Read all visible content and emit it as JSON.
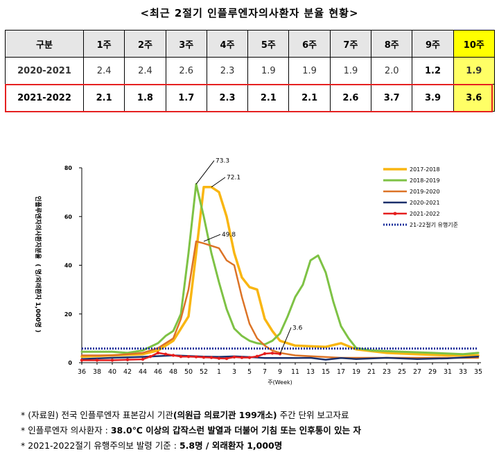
{
  "title": "<최근 2절기 인플루엔자의사환자 분율 현황>",
  "table": {
    "header": [
      "구분",
      "1주",
      "2주",
      "3주",
      "4주",
      "5주",
      "6주",
      "7주",
      "8주",
      "9주",
      "10주"
    ],
    "rows": [
      [
        "2020-2021",
        "2.4",
        "2.4",
        "2.6",
        "2.3",
        "1.9",
        "1.9",
        "1.9",
        "2.0",
        "1.2",
        "1.9"
      ],
      [
        "2021-2022",
        "2.1",
        "1.8",
        "1.7",
        "2.3",
        "2.1",
        "2.1",
        "2.6",
        "3.7",
        "3.9",
        "3.6"
      ]
    ]
  },
  "chart_data": {
    "type": "line",
    "ylabel_main": "인플루엔자의사환자분율",
    "ylabel_unit": "( 명/외래환자 1,000명 )",
    "xlabel": "주(Week)",
    "ylim": [
      0,
      80
    ],
    "yticks": [
      "0",
      "20",
      "40",
      "60",
      "80"
    ],
    "x_ticks": [
      "36",
      "38",
      "40",
      "42",
      "44",
      "46",
      "48",
      "50",
      "52",
      "1",
      "3",
      "5",
      "7",
      "9",
      "11",
      "13",
      "15",
      "17",
      "19",
      "21",
      "23",
      "25",
      "27",
      "29",
      "31",
      "33",
      "35"
    ],
    "week_index_range": [
      0,
      52
    ],
    "series": [
      {
        "name": "2017-2018",
        "color": "#f9b612",
        "width": 3.5,
        "values": [
          [
            0,
            2.5
          ],
          [
            4,
            3
          ],
          [
            8,
            3.5
          ],
          [
            10,
            5
          ],
          [
            12,
            9
          ],
          [
            14,
            19
          ],
          [
            15,
            45
          ],
          [
            16,
            72.1
          ],
          [
            17,
            72.1
          ],
          [
            18,
            70
          ],
          [
            19,
            60
          ],
          [
            20,
            45
          ],
          [
            21,
            35
          ],
          [
            22,
            31
          ],
          [
            23,
            30
          ],
          [
            24,
            18
          ],
          [
            25,
            13
          ],
          [
            26,
            9
          ],
          [
            28,
            7
          ],
          [
            32,
            6.5
          ],
          [
            34,
            8
          ],
          [
            36,
            5.5
          ],
          [
            40,
            4
          ],
          [
            44,
            3.5
          ],
          [
            48,
            3
          ],
          [
            52,
            3
          ]
        ]
      },
      {
        "name": "2018-2019",
        "color": "#7ec245",
        "width": 3,
        "values": [
          [
            0,
            4.5
          ],
          [
            4,
            4.5
          ],
          [
            6,
            4
          ],
          [
            8,
            5
          ],
          [
            10,
            8
          ],
          [
            11,
            11
          ],
          [
            12,
            13
          ],
          [
            13,
            20
          ],
          [
            14,
            45
          ],
          [
            15,
            73.3
          ],
          [
            16,
            60
          ],
          [
            17,
            45
          ],
          [
            18,
            33
          ],
          [
            19,
            22
          ],
          [
            20,
            14
          ],
          [
            21,
            11
          ],
          [
            22,
            9
          ],
          [
            23,
            8
          ],
          [
            24,
            7.5
          ],
          [
            25,
            9
          ],
          [
            26,
            12
          ],
          [
            27,
            19
          ],
          [
            28,
            27
          ],
          [
            29,
            32
          ],
          [
            30,
            42
          ],
          [
            31,
            44
          ],
          [
            32,
            37
          ],
          [
            33,
            25
          ],
          [
            34,
            15
          ],
          [
            35,
            10
          ],
          [
            36,
            6
          ],
          [
            38,
            5
          ],
          [
            42,
            4.5
          ],
          [
            46,
            4
          ],
          [
            50,
            3.5
          ],
          [
            52,
            4
          ]
        ]
      },
      {
        "name": "2019-2020",
        "color": "#dc7326",
        "width": 2.5,
        "values": [
          [
            0,
            3
          ],
          [
            4,
            3
          ],
          [
            8,
            4
          ],
          [
            10,
            6
          ],
          [
            12,
            10
          ],
          [
            13,
            18
          ],
          [
            14,
            30
          ],
          [
            15,
            49.8
          ],
          [
            16,
            49
          ],
          [
            17,
            48
          ],
          [
            18,
            47
          ],
          [
            19,
            42
          ],
          [
            20,
            40
          ],
          [
            21,
            27
          ],
          [
            22,
            16
          ],
          [
            23,
            10
          ],
          [
            24,
            7
          ],
          [
            25,
            5
          ],
          [
            26,
            4
          ],
          [
            28,
            3
          ],
          [
            34,
            2
          ],
          [
            40,
            2
          ],
          [
            46,
            2
          ],
          [
            52,
            2
          ]
        ]
      },
      {
        "name": "2020-2021",
        "color": "#1a2f6b",
        "width": 2.5,
        "values": [
          [
            0,
            1.5
          ],
          [
            4,
            2
          ],
          [
            8,
            2.4
          ],
          [
            12,
            3
          ],
          [
            16,
            2.5
          ],
          [
            18,
            2.4
          ],
          [
            20,
            2.6
          ],
          [
            22,
            2.3
          ],
          [
            24,
            1.9
          ],
          [
            26,
            1.9
          ],
          [
            28,
            1.9
          ],
          [
            30,
            2.0
          ],
          [
            32,
            1.2
          ],
          [
            34,
            1.9
          ],
          [
            36,
            1.5
          ],
          [
            40,
            2
          ],
          [
            44,
            1.5
          ],
          [
            48,
            1.8
          ],
          [
            52,
            2.5
          ]
        ]
      },
      {
        "name": "2021-2022",
        "color": "#e51e1e",
        "width": 2.5,
        "marker": true,
        "values": [
          [
            0,
            1
          ],
          [
            2,
            1
          ],
          [
            4,
            1
          ],
          [
            6,
            1.2
          ],
          [
            8,
            1.4
          ],
          [
            9,
            2.5
          ],
          [
            10,
            4
          ],
          [
            11,
            3.5
          ],
          [
            12,
            3
          ],
          [
            13,
            2.5
          ],
          [
            14,
            2.5
          ],
          [
            15,
            2.4
          ],
          [
            16,
            2.2
          ],
          [
            17,
            2.1
          ],
          [
            18,
            1.8
          ],
          [
            19,
            1.7
          ],
          [
            20,
            2.3
          ],
          [
            21,
            2.1
          ],
          [
            22,
            2.1
          ],
          [
            23,
            2.6
          ],
          [
            24,
            3.7
          ],
          [
            25,
            3.9
          ],
          [
            26,
            3.6
          ]
        ]
      },
      {
        "name": "21-22절기 유행기준",
        "color": "#1a2f9b",
        "width": 3,
        "dashed": true,
        "values": [
          [
            0,
            5.8
          ],
          [
            52,
            5.8
          ]
        ]
      }
    ],
    "annotations": [
      {
        "label": "73.3",
        "x": 15,
        "y": 73.3
      },
      {
        "label": "72.1",
        "x": 17,
        "y": 72.1
      },
      {
        "label": "49.8",
        "x": 16,
        "y": 49.8
      },
      {
        "label": "3.6",
        "x": 26,
        "y": 3.6
      }
    ]
  },
  "notes": [
    {
      "plain": "* (자료원) 전국 인플루엔자 표본감시 기관",
      "bold": "(의원급 의료기관 199개소)",
      "tail": " 주간 단위 보고자료"
    },
    {
      "plain": "* 인플루엔자 의사환자 : ",
      "bold": "38.0℃ 이상의 갑작스런 발열과 더불어 기침 또는 인후통이 있는 자",
      "tail": ""
    },
    {
      "plain": "* 2021-2022절기 유행주의보 발령 기준 : ",
      "bold": "5.8명 / 외래환자 1,000명",
      "tail": ""
    }
  ]
}
